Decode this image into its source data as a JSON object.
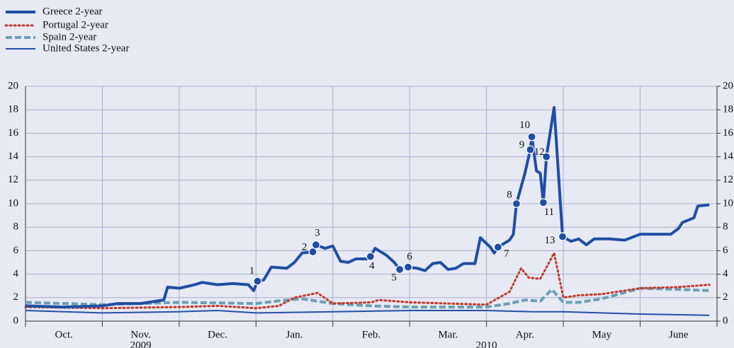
{
  "chart_data": {
    "type": "line",
    "categories": [
      "Oct.",
      "Nov.",
      "Dec.",
      "Jan.",
      "Feb.",
      "Mar.",
      "Apr.",
      "May",
      "June"
    ],
    "year_labels": [
      {
        "label": "2009",
        "x": 1.5
      },
      {
        "label": "2010",
        "x": 6
      }
    ],
    "xlim": [
      0,
      9
    ],
    "xticks": [
      0,
      1,
      2,
      3,
      4,
      5,
      6,
      7,
      8,
      9
    ],
    "ylim": [
      0,
      20
    ],
    "yticks": [
      0,
      2,
      4,
      6,
      8,
      10,
      12,
      14,
      16,
      18,
      20
    ],
    "y2lim": [
      0,
      20
    ],
    "y2ticks": [
      0,
      2,
      4,
      6,
      8,
      10,
      12,
      14,
      16,
      18,
      20
    ],
    "grid": true,
    "legend": "top-left",
    "series": [
      {
        "name": "Greece 2-year",
        "color": "#1f4ea3",
        "style": "solid-thick",
        "x": [
          0,
          0.5,
          1.0,
          1.2,
          1.5,
          1.8,
          1.85,
          2.0,
          2.2,
          2.3,
          2.5,
          2.7,
          2.9,
          2.97,
          3.02,
          3.1,
          3.2,
          3.4,
          3.5,
          3.6,
          3.74,
          3.78,
          3.9,
          4.0,
          4.1,
          4.2,
          4.3,
          4.45,
          4.49,
          4.55,
          4.7,
          4.8,
          4.87,
          4.98,
          5.1,
          5.2,
          5.3,
          5.4,
          5.5,
          5.6,
          5.7,
          5.85,
          5.92,
          6.05,
          6.1,
          6.15,
          6.3,
          6.35,
          6.39,
          6.5,
          6.57,
          6.59,
          6.65,
          6.7,
          6.74,
          6.78,
          6.88,
          6.99,
          7.1,
          7.2,
          7.3,
          7.4,
          7.6,
          7.8,
          8.0,
          8.2,
          8.4,
          8.5,
          8.55,
          8.7,
          8.75,
          8.9
        ],
        "values": [
          1.3,
          1.2,
          1.3,
          1.5,
          1.5,
          1.8,
          2.9,
          2.8,
          3.1,
          3.3,
          3.1,
          3.2,
          3.1,
          2.6,
          3.4,
          3.5,
          4.6,
          4.5,
          5.0,
          5.8,
          5.9,
          6.5,
          6.2,
          6.4,
          5.1,
          5.0,
          5.3,
          5.3,
          5.5,
          6.2,
          5.6,
          5.0,
          4.4,
          4.6,
          4.5,
          4.3,
          4.9,
          5.0,
          4.4,
          4.5,
          4.9,
          4.9,
          7.1,
          6.3,
          5.8,
          6.3,
          6.9,
          7.4,
          10.0,
          12.6,
          14.6,
          15.7,
          12.8,
          12.6,
          10.1,
          14.0,
          18.2,
          7.2,
          6.8,
          7.0,
          6.5,
          7.0,
          7.0,
          6.9,
          7.4,
          7.4,
          7.4,
          7.9,
          8.4,
          8.8,
          9.8,
          9.9
        ]
      },
      {
        "name": "Portugal 2-year",
        "color": "#c0392b",
        "style": "dotted",
        "x": [
          0,
          1,
          2,
          2.5,
          3,
          3.3,
          3.5,
          3.8,
          4.0,
          4.5,
          4.6,
          5.0,
          6.0,
          6.3,
          6.45,
          6.55,
          6.7,
          6.88,
          7.0,
          7.2,
          7.5,
          8.0,
          8.5,
          8.9
        ],
        "values": [
          1.2,
          1.1,
          1.2,
          1.3,
          1.1,
          1.3,
          2.0,
          2.4,
          1.5,
          1.6,
          1.8,
          1.6,
          1.4,
          2.5,
          4.5,
          3.7,
          3.6,
          5.8,
          2.0,
          2.2,
          2.3,
          2.8,
          2.9,
          3.1
        ]
      },
      {
        "name": "Spain 2-year",
        "color": "#6a9fb5",
        "style": "dashed",
        "x": [
          0,
          1,
          2,
          3,
          3.4,
          3.6,
          4.0,
          4.5,
          5,
          6,
          6.3,
          6.5,
          6.7,
          6.85,
          7.0,
          7.2,
          7.5,
          8.0,
          8.5,
          8.9
        ],
        "values": [
          1.6,
          1.4,
          1.6,
          1.5,
          1.8,
          1.9,
          1.5,
          1.3,
          1.2,
          1.2,
          1.5,
          1.8,
          1.7,
          2.7,
          1.6,
          1.6,
          1.9,
          2.8,
          2.7,
          2.6
        ]
      },
      {
        "name": "United States 2-year",
        "color": "#2450a6",
        "style": "solid-thin",
        "x": [
          0,
          1,
          2,
          2.5,
          3,
          4,
          5,
          6,
          6.6,
          7,
          8,
          8.9
        ],
        "values": [
          0.9,
          0.7,
          0.8,
          0.9,
          0.7,
          0.8,
          0.9,
          0.9,
          0.8,
          0.8,
          0.6,
          0.5
        ]
      }
    ],
    "annotations": [
      {
        "label": "1",
        "x": 3.02,
        "y": 3.4
      },
      {
        "label": "2",
        "x": 3.74,
        "y": 5.9
      },
      {
        "label": "3",
        "x": 3.78,
        "y": 6.5
      },
      {
        "label": "4",
        "x": 4.49,
        "y": 5.5
      },
      {
        "label": "5",
        "x": 4.87,
        "y": 4.4
      },
      {
        "label": "6",
        "x": 4.98,
        "y": 4.6
      },
      {
        "label": "7",
        "x": 6.15,
        "y": 6.3
      },
      {
        "label": "8",
        "x": 6.39,
        "y": 10.0
      },
      {
        "label": "9",
        "x": 6.57,
        "y": 14.6
      },
      {
        "label": "10",
        "x": 6.59,
        "y": 15.7
      },
      {
        "label": "11",
        "x": 6.74,
        "y": 10.1
      },
      {
        "label": "12",
        "x": 6.78,
        "y": 14.0
      },
      {
        "label": "13",
        "x": 6.99,
        "y": 7.2
      }
    ]
  }
}
